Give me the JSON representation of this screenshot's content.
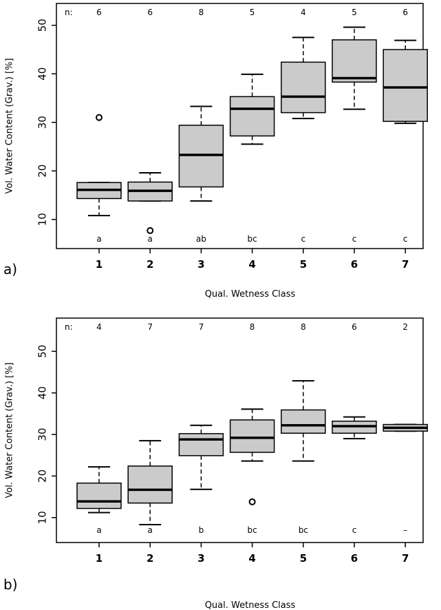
{
  "chart_data": [
    {
      "type": "box",
      "panel_label": "a)",
      "xlabel": "Qual. Wetness Class",
      "ylabel": "Vol. Water Content (Grav.) [%]",
      "n_prefix": "n:",
      "categories": [
        "1",
        "2",
        "3",
        "4",
        "5",
        "6",
        "7"
      ],
      "n": [
        "6",
        "6",
        "8",
        "5",
        "4",
        "5",
        "6"
      ],
      "groups": [
        "a",
        "a",
        "ab",
        "bc",
        "c",
        "c",
        "c"
      ],
      "yticks": [
        10,
        20,
        30,
        40,
        50
      ],
      "ylim": [
        4,
        54.5
      ],
      "boxes": [
        {
          "whisker_low": 10.8,
          "q1": 14.3,
          "median": 16.1,
          "q3": 17.6,
          "whisker_high": 17.6,
          "outliers": [
            31.0
          ]
        },
        {
          "whisker_low": 13.8,
          "q1": 13.8,
          "median": 15.9,
          "q3": 17.7,
          "whisker_high": 19.6,
          "outliers": [
            7.7
          ]
        },
        {
          "whisker_low": 13.8,
          "q1": 16.7,
          "median": 23.3,
          "q3": 29.4,
          "whisker_high": 33.3,
          "outliers": []
        },
        {
          "whisker_low": 25.5,
          "q1": 27.2,
          "median": 32.8,
          "q3": 35.3,
          "whisker_high": 39.9,
          "outliers": []
        },
        {
          "whisker_low": 30.8,
          "q1": 32.0,
          "median": 35.3,
          "q3": 42.4,
          "whisker_high": 47.5,
          "outliers": []
        },
        {
          "whisker_low": 32.7,
          "q1": 38.3,
          "median": 39.1,
          "q3": 47.0,
          "whisker_high": 49.6,
          "outliers": []
        },
        {
          "whisker_low": 29.8,
          "q1": 30.2,
          "median": 37.2,
          "q3": 45.0,
          "whisker_high": 46.9,
          "outliers": []
        }
      ]
    },
    {
      "type": "box",
      "panel_label": "b)",
      "xlabel": "Qual. Wetness Class",
      "ylabel": "Vol. Water Content (Grav.) [%]",
      "n_prefix": "n:",
      "categories": [
        "1",
        "2",
        "3",
        "4",
        "5",
        "6",
        "7"
      ],
      "n": [
        "4",
        "7",
        "7",
        "8",
        "8",
        "6",
        "2"
      ],
      "groups": [
        "a",
        "a",
        "b",
        "bc",
        "bc",
        "c",
        "–"
      ],
      "yticks": [
        10,
        20,
        30,
        40,
        50
      ],
      "ylim": [
        4,
        58
      ],
      "boxes": [
        {
          "whisker_low": 11.2,
          "q1": 12.2,
          "median": 13.9,
          "q3": 18.3,
          "whisker_high": 22.2,
          "outliers": []
        },
        {
          "whisker_low": 8.3,
          "q1": 13.5,
          "median": 16.7,
          "q3": 22.4,
          "whisker_high": 28.5,
          "outliers": []
        },
        {
          "whisker_low": 16.8,
          "q1": 24.9,
          "median": 28.8,
          "q3": 30.2,
          "whisker_high": 32.2,
          "outliers": []
        },
        {
          "whisker_low": 23.6,
          "q1": 25.7,
          "median": 29.2,
          "q3": 33.5,
          "whisker_high": 36.1,
          "outliers": [
            13.8
          ]
        },
        {
          "whisker_low": 23.6,
          "q1": 30.3,
          "median": 32.2,
          "q3": 35.9,
          "whisker_high": 42.9,
          "outliers": []
        },
        {
          "whisker_low": 29.0,
          "q1": 30.3,
          "median": 32.0,
          "q3": 33.2,
          "whisker_high": 34.2,
          "outliers": []
        },
        {
          "whisker_low": 30.8,
          "q1": 30.8,
          "median": 31.6,
          "q3": 32.4,
          "whisker_high": 32.4,
          "outliers": []
        }
      ]
    }
  ]
}
